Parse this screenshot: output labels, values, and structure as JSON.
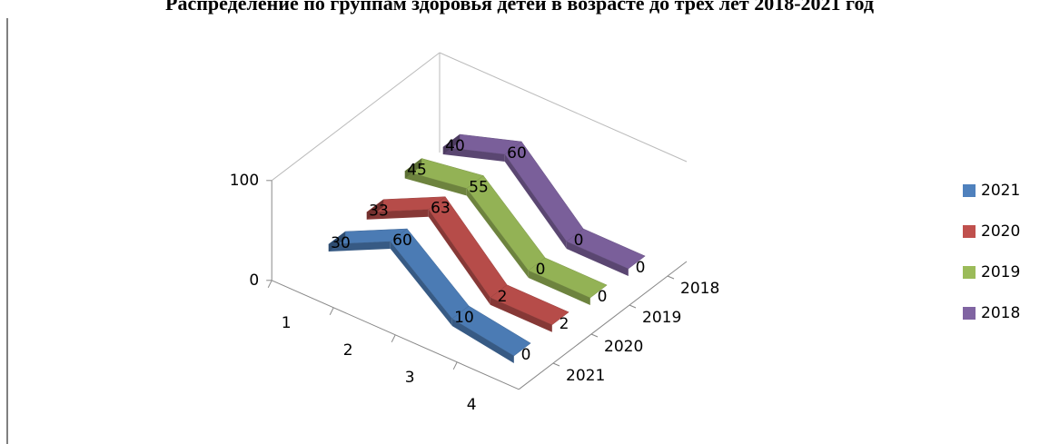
{
  "chart_data": {
    "type": "line3d",
    "title": "Распределение по группам здоровья детей в возрасте до трех лет 2018-2021 год",
    "categories": [
      "1",
      "2",
      "3",
      "4"
    ],
    "series": [
      {
        "name": "2021",
        "color": "#4f81bd",
        "values": [
          30,
          60,
          10,
          0
        ]
      },
      {
        "name": "2020",
        "color": "#c0504d",
        "values": [
          33,
          63,
          2,
          2
        ]
      },
      {
        "name": "2019",
        "color": "#9bbb59",
        "values": [
          45,
          55,
          0,
          0
        ]
      },
      {
        "name": "2018",
        "color": "#8064a2",
        "values": [
          40,
          60,
          0,
          0
        ]
      }
    ],
    "ylim": [
      0,
      100
    ],
    "yticks": [
      0,
      100
    ],
    "legend": "right"
  }
}
